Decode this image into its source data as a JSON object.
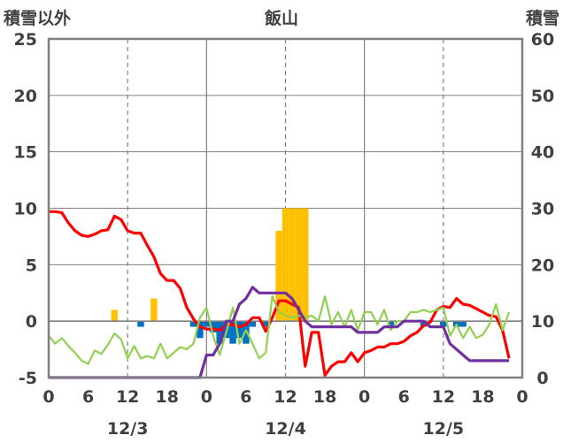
{
  "chart_data": {
    "type": "line",
    "title": "飯山",
    "ylabel_left": "積雪以外",
    "ylabel_right": "積雪",
    "x_hour_ticks": [
      "0",
      "6",
      "12",
      "18",
      "0",
      "6",
      "12",
      "18",
      "0",
      "6",
      "12",
      "18",
      "0"
    ],
    "date_labels": [
      "12/3",
      "12/4",
      "12/5"
    ],
    "y_left": {
      "min": -5,
      "max": 25,
      "ticks": [
        "-5",
        "0",
        "5",
        "10",
        "15",
        "20",
        "25"
      ]
    },
    "y_right": {
      "min": 0,
      "max": 60,
      "ticks": [
        "0",
        "10",
        "20",
        "30",
        "40",
        "50",
        "60"
      ]
    },
    "colors": {
      "red_line": "#ff0000",
      "green_line": "#92d050",
      "purple_line": "#7030a0",
      "orange_bars": "#ffc000",
      "blue_bars": "#0070c0",
      "axis": "#808080"
    },
    "series": [
      {
        "color": "red",
        "values": [
          9.7,
          9.7,
          9.6,
          8.7,
          8.0,
          7.6,
          7.5,
          7.7,
          8.0,
          8.1,
          9.3,
          9.0,
          8.0,
          7.8,
          7.8,
          6.7,
          5.7,
          4.2,
          3.6,
          3.6,
          2.9,
          1.2,
          0.2,
          -0.5,
          -0.7,
          -0.7,
          -0.8,
          -0.3,
          -0.3,
          -0.5,
          -0.3,
          0.3,
          0.3,
          -0.9,
          0.3,
          1.8,
          1.8,
          1.5,
          1.2,
          -4.0,
          -1.0,
          -1.0,
          -4.8,
          -4.0,
          -3.6,
          -3.6,
          -2.8,
          -3.6,
          -2.8,
          -2.6,
          -2.3,
          -2.3,
          -2.0,
          -2.0,
          -1.8,
          -1.3,
          -1.0,
          -0.4,
          -0.1,
          1.0,
          1.3,
          1.2,
          2.0,
          1.5,
          1.4,
          1.1,
          0.8,
          0.5,
          0.4,
          -0.8,
          -3.3
        ]
      },
      {
        "color": "green",
        "values": [
          -1.3,
          -2.0,
          -1.5,
          -2.2,
          -2.8,
          -3.5,
          -3.8,
          -2.6,
          -2.9,
          -2.1,
          -1.1,
          -1.6,
          -3.3,
          -2.2,
          -3.3,
          -3.1,
          -3.3,
          -2.0,
          -3.3,
          -2.8,
          -2.3,
          -2.5,
          -2.0,
          0.3,
          1.2,
          -1.3,
          -3.0,
          -1.0,
          1.2,
          -2.0,
          -0.8,
          -2.0,
          -3.3,
          -2.8,
          2.2,
          0.8,
          0.5,
          0.3,
          0.5,
          0.3,
          0.5,
          0.0,
          2.2,
          -0.3,
          0.8,
          -0.5,
          1.0,
          -0.8,
          0.8,
          0.8,
          -0.3,
          1.0,
          -0.8,
          0.0,
          0.0,
          0.8,
          0.8,
          1.0,
          0.8,
          1.0,
          1.2,
          -1.3,
          -0.3,
          -1.5,
          -0.5,
          -1.5,
          -1.2,
          -0.3,
          1.5,
          -0.8,
          0.8
        ]
      },
      {
        "color": "purple",
        "axis": "right",
        "values": [
          0,
          0,
          0,
          0,
          0,
          0,
          0,
          0,
          0,
          0,
          0,
          0,
          0,
          0,
          0,
          0,
          0,
          0,
          0,
          0,
          0,
          0,
          0,
          0,
          4,
          4,
          6,
          10,
          10,
          13,
          14,
          16,
          15,
          15,
          15,
          15,
          15,
          14,
          12,
          10,
          9,
          9,
          9,
          9,
          9,
          9,
          9,
          8,
          8,
          8,
          8,
          9,
          9,
          9,
          10,
          10,
          10,
          10,
          9,
          9,
          9,
          6,
          5,
          4,
          3,
          3,
          3,
          3,
          3,
          3,
          3
        ]
      },
      {
        "color": "orange",
        "values": [
          0,
          0,
          0,
          0,
          0,
          0,
          0,
          0,
          0,
          0,
          1.0,
          0,
          0,
          0,
          0,
          0,
          2.0,
          0,
          0,
          0,
          0,
          0,
          0,
          0,
          0,
          0,
          0,
          0,
          0,
          0,
          0,
          0,
          0,
          0,
          0,
          8.0,
          10.0,
          10.0,
          10.0,
          10.0,
          0,
          0,
          0,
          0,
          0,
          0,
          0,
          0,
          0,
          0,
          0,
          0,
          0,
          0,
          0,
          0,
          0,
          0,
          0,
          0,
          0,
          0,
          0,
          0,
          0,
          0,
          0,
          0,
          0,
          0,
          0
        ]
      },
      {
        "color": "blue",
        "values": [
          0,
          0,
          0,
          0,
          0,
          0,
          0,
          0,
          0,
          0,
          0,
          0,
          0,
          0,
          -0.5,
          0,
          0,
          0,
          0,
          0,
          0,
          0,
          -0.5,
          -1.5,
          -0.5,
          -1.0,
          -2.0,
          -1.5,
          -2.0,
          -1.5,
          -2.0,
          -0.5,
          0,
          -0.5,
          0,
          0,
          0,
          0,
          0,
          0,
          0,
          0,
          0,
          0,
          0,
          0,
          0,
          0,
          0,
          0,
          0,
          0,
          -0.5,
          0,
          0,
          0,
          0,
          -0.5,
          0,
          0,
          -0.5,
          0,
          -0.5,
          -0.5,
          0,
          0,
          0,
          0,
          0,
          0,
          0
        ]
      }
    ]
  }
}
